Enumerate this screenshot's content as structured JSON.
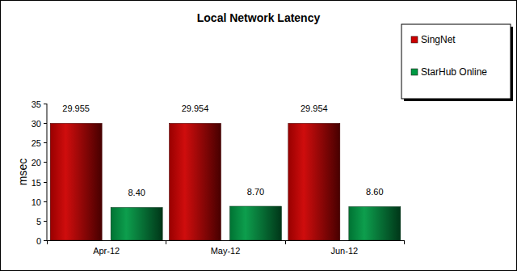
{
  "chart_data": {
    "type": "bar",
    "title": "Local Network Latency",
    "ylabel": "msec",
    "categories": [
      "Apr-12",
      "May-12",
      "Jun-12"
    ],
    "series": [
      {
        "name": "SingNet",
        "color": "#cc0000",
        "values": [
          29.955,
          29.954,
          29.954
        ]
      },
      {
        "name": "StarHub Online",
        "color": "#009944",
        "values": [
          8.4,
          8.7,
          8.6
        ],
        "value_labels": [
          "8.40",
          "8.70",
          "8.60"
        ]
      }
    ],
    "ylim": [
      0,
      35
    ],
    "yticks": [
      0,
      5,
      10,
      15,
      20,
      25,
      30,
      35
    ],
    "grid": false,
    "legend": "top-right",
    "data_labels": true
  }
}
